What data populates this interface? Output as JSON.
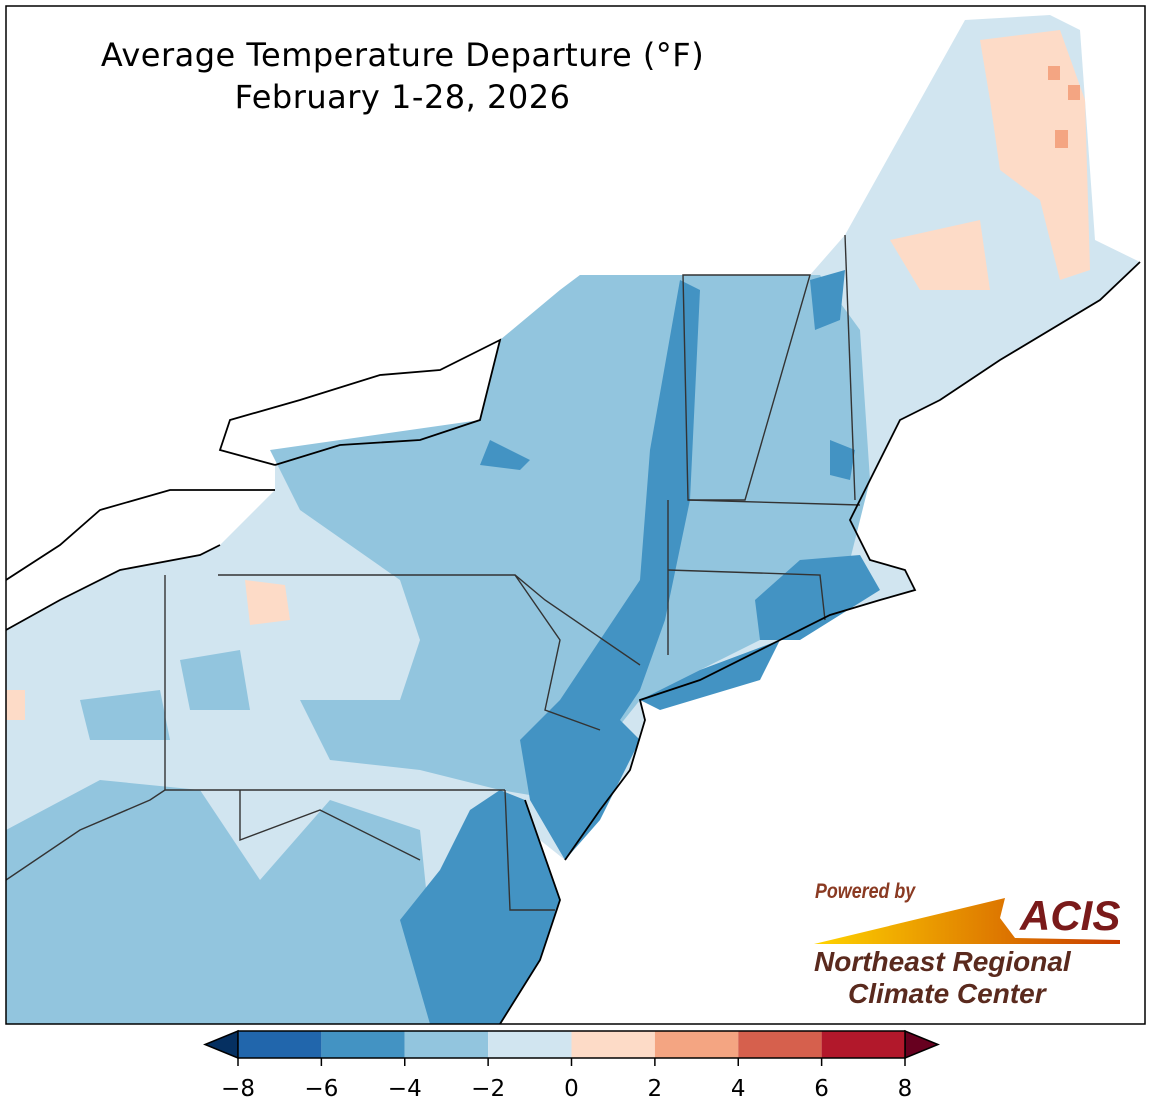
{
  "title": {
    "line1": "Average Temperature Departure (°F)",
    "line2": "February 1-28, 2026"
  },
  "logo": {
    "powered": "Powered by",
    "acis": "ACIS",
    "org_line1": "Northeast Regional",
    "org_line2": "Climate Center"
  },
  "colorbar": {
    "ticks": [
      "−8",
      "−6",
      "−4",
      "−2",
      "0",
      "2",
      "4",
      "6",
      "8"
    ],
    "colors": [
      "#2166ac",
      "#4393c3",
      "#92c5de",
      "#d1e5f0",
      "#fddbc7",
      "#f4a582",
      "#d6604d",
      "#b2182b"
    ],
    "under_color": "#053061",
    "over_color": "#67001f",
    "range": [
      -8,
      8
    ]
  }
}
